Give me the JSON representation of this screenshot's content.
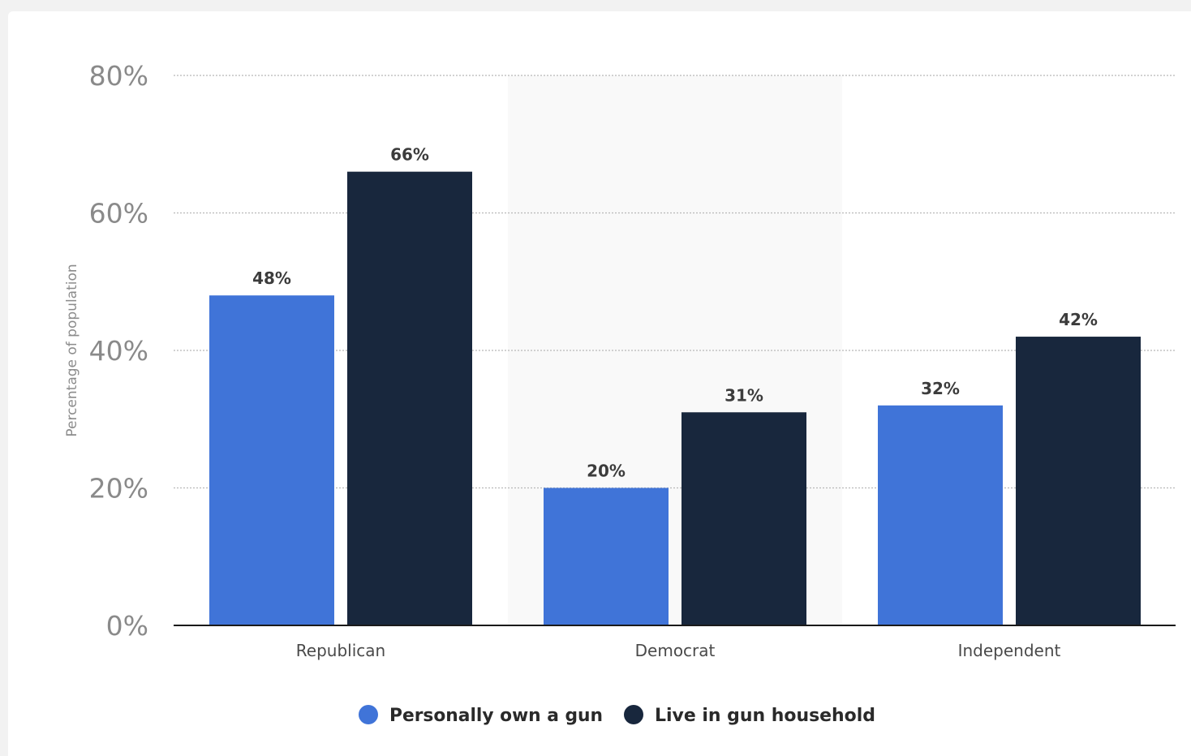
{
  "chart_data": {
    "type": "bar",
    "title": "",
    "xlabel": "",
    "ylabel": "Percentage of population",
    "categories": [
      "Republican",
      "Democrat",
      "Independent"
    ],
    "series": [
      {
        "name": "Personally own a gun",
        "values": [
          48,
          20,
          32
        ],
        "color": "#4074d8"
      },
      {
        "name": "Live in gun household",
        "values": [
          66,
          31,
          42
        ],
        "color": "#18273d"
      }
    ],
    "ylim": [
      0,
      80
    ],
    "yticks": [
      0,
      20,
      40,
      60,
      80
    ],
    "ytick_labels": [
      "0%",
      "20%",
      "40%",
      "60%",
      "80%"
    ],
    "value_suffix": "%",
    "grid": true,
    "highlighted_category": "Democrat",
    "highlight_color": "#f9f9f9",
    "legend_position": "bottom-center"
  }
}
